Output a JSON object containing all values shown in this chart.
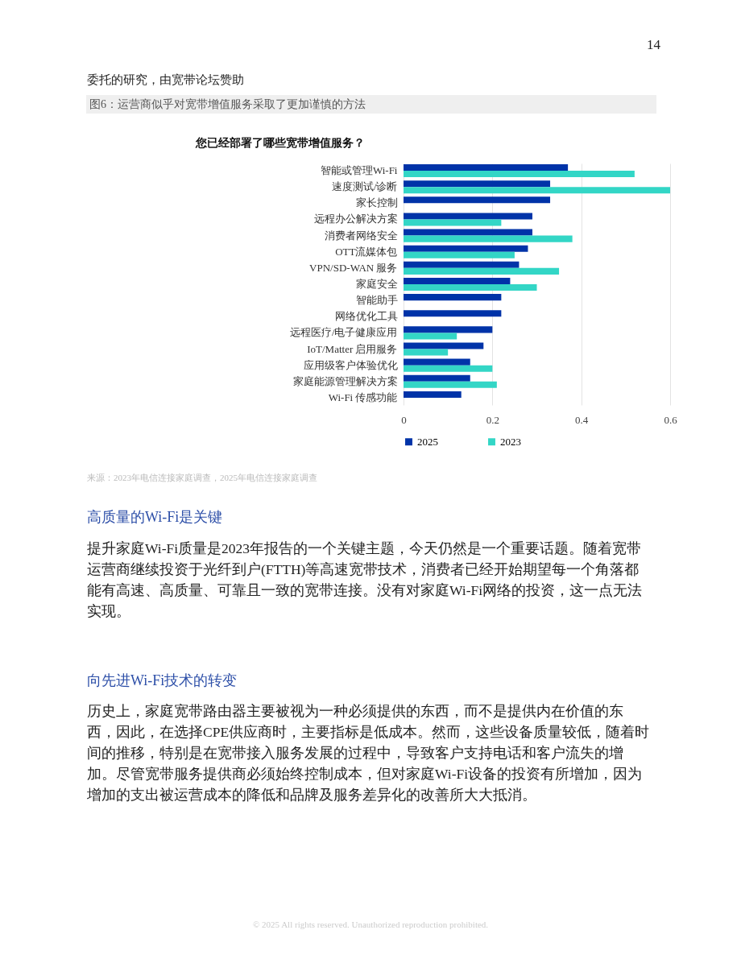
{
  "chart_data": {
    "type": "bar",
    "orientation": "horizontal",
    "title": "您已经部署了哪些宽带增值服务？",
    "categories": [
      "智能或管理Wi-Fi",
      "速度测试/诊断",
      "家长控制",
      "远程办公解决方案",
      "消费者网络安全",
      "OTT流媒体包",
      "VPN/SD-WAN 服务",
      "家庭安全",
      "智能助手",
      "网络优化工具",
      "远程医疗/电子健康应用",
      "IoT/Matter 启用服务",
      "应用级客户体验优化",
      "家庭能源管理解决方案",
      "Wi-Fi 传感功能"
    ],
    "series": [
      {
        "name": "2025",
        "color": "#0033a8",
        "values": [
          0.37,
          0.33,
          0.33,
          0.29,
          0.29,
          0.28,
          0.26,
          0.24,
          0.22,
          0.22,
          0.2,
          0.18,
          0.15,
          0.15,
          0.13
        ]
      },
      {
        "name": "2023",
        "color": "#33d6c6",
        "values": [
          0.52,
          0.6,
          null,
          0.22,
          0.38,
          0.25,
          0.35,
          0.3,
          null,
          null,
          0.12,
          0.1,
          0.2,
          0.21,
          null
        ]
      }
    ],
    "xlim": [
      0,
      0.6
    ],
    "xticks": [
      0,
      0.2,
      0.4,
      0.6
    ],
    "grid": "x",
    "legend": "bottom",
    "annotations": [
      "委托的研究，由宽带论坛赞助",
      "14",
      "图6：运营商似乎对宽带增值服务采取了更加谨慎的方法",
      "来源：2023年电信连接家庭调查，2025年电信连接家庭调查",
      "高质量的Wi-Fi是关键",
      "提升家庭Wi-Fi质量是2023年报告的一个关键主题，今天仍然是一个重要话题。随着宽带运营商继续投资于光纤到户(FTTH)等高速宽带技术，消费者已经开始期望每一个角落都能有高速、高质量、可靠且一致的宽带连接。没有对家庭Wi-Fi网络的投资，这一点无法实现。",
      "向先进Wi-Fi技术的转变",
      "历史上，家庭宽带路由器主要被视为一种必须提供的东西，而不是提供内在价值的东西，因此，在选择CPE供应商时，主要指标是低成本。然而，这些设备质量较低，随着时间的推移，特别是在宽带接入服务发展的过程中，导致客户支持电话和客户流失的增加。尽管宽带服务提供商必须始终控制成本，但对家庭Wi-Fi设备的投资有所增加，因为增加的支出被运营成本的降低和品牌及服务差异化的改善所大大抵消。",
      "© 2025 All rights reserved. Unauthorized reproduction prohibited."
    ]
  }
}
